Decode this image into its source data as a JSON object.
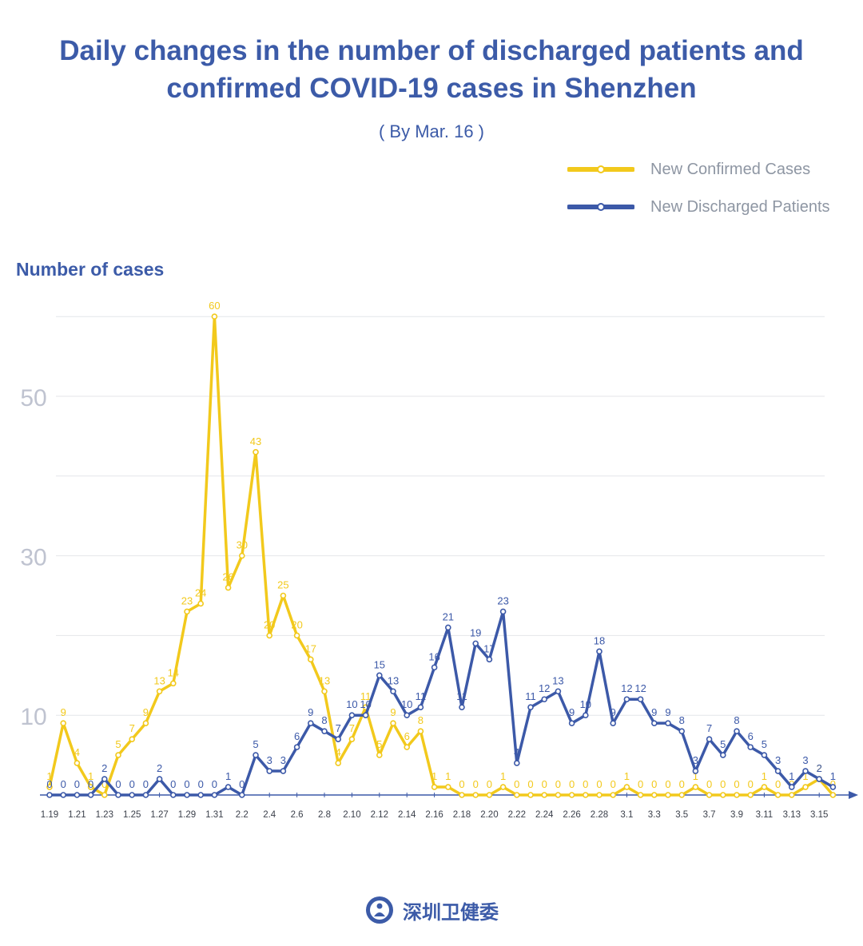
{
  "title_line1": "Daily changes in the number of discharged patients and",
  "title_line2": "confirmed COVID-19 cases in Shenzhen",
  "subtitle": "( By Mar. 16 )",
  "ylabel": "Number of cases",
  "footer": "深圳卫健委",
  "legend": [
    {
      "label": "New Confirmed Cases",
      "color": "#f2c91c"
    },
    {
      "label": "New Discharged Patients",
      "color": "#3c59a8"
    }
  ],
  "chart_data": {
    "type": "line",
    "title": "Daily changes in the number of discharged patients and confirmed COVID-19 cases in Shenzhen",
    "subtitle": "( By Mar. 16 )",
    "ylabel": "Number of cases",
    "ylim": [
      0,
      60
    ],
    "yticks": [
      10,
      30,
      50
    ],
    "grid": true,
    "legend_position": "top-right",
    "x": [
      "1.19",
      "1.20",
      "1.21",
      "1.22",
      "1.23",
      "1.24",
      "1.25",
      "1.26",
      "1.27",
      "1.28",
      "1.29",
      "1.30",
      "1.31",
      "2.1",
      "2.2",
      "2.3",
      "2.4",
      "2.5",
      "2.6",
      "2.7",
      "2.8",
      "2.9",
      "2.10",
      "2.11",
      "2.12",
      "2.13",
      "2.14",
      "2.15",
      "2.16",
      "2.17",
      "2.18",
      "2.19",
      "2.20",
      "2.21",
      "2.22",
      "2.23",
      "2.24",
      "2.25",
      "2.26",
      "2.27",
      "2.28",
      "2.29",
      "3.1",
      "3.2",
      "3.3",
      "3.4",
      "3.5",
      "3.6",
      "3.7",
      "3.8",
      "3.9",
      "3.10",
      "3.11",
      "3.12",
      "3.13",
      "3.14",
      "3.15",
      "3.16"
    ],
    "xtick_labels": [
      "1.19",
      "1.21",
      "1.23",
      "1.25",
      "1.27",
      "1.29",
      "1.31",
      "2.2",
      "2.4",
      "2.6",
      "2.8",
      "2.10",
      "2.12",
      "2.14",
      "2.16",
      "2.18",
      "2.20",
      "2.22",
      "2.24",
      "2.26",
      "2.28",
      "3.1",
      "3.3",
      "3.5",
      "3.7",
      "3.9",
      "3.11",
      "3.13",
      "3.15"
    ],
    "series": [
      {
        "name": "New Confirmed Cases",
        "color": "#f2c91c",
        "values": [
          1,
          9,
          4,
          1,
          0,
          5,
          7,
          9,
          13,
          14,
          23,
          24,
          60,
          26,
          30,
          43,
          20,
          25,
          20,
          17,
          13,
          4,
          7,
          11,
          5,
          9,
          6,
          8,
          1,
          1,
          0,
          0,
          0,
          1,
          0,
          0,
          0,
          0,
          0,
          0,
          0,
          0,
          1,
          0,
          0,
          0,
          0,
          1,
          0,
          0,
          0,
          0,
          1,
          0,
          0,
          1,
          2,
          0
        ]
      },
      {
        "name": "New Discharged Patients",
        "color": "#3c59a8",
        "values": [
          0,
          0,
          0,
          0,
          2,
          0,
          0,
          0,
          2,
          0,
          0,
          0,
          0,
          1,
          0,
          5,
          3,
          3,
          6,
          9,
          8,
          7,
          10,
          10,
          15,
          13,
          10,
          11,
          16,
          21,
          11,
          19,
          17,
          23,
          4,
          11,
          12,
          13,
          9,
          10,
          18,
          9,
          12,
          12,
          9,
          9,
          8,
          3,
          7,
          5,
          8,
          6,
          5,
          3,
          1,
          3,
          2,
          1
        ]
      }
    ]
  }
}
